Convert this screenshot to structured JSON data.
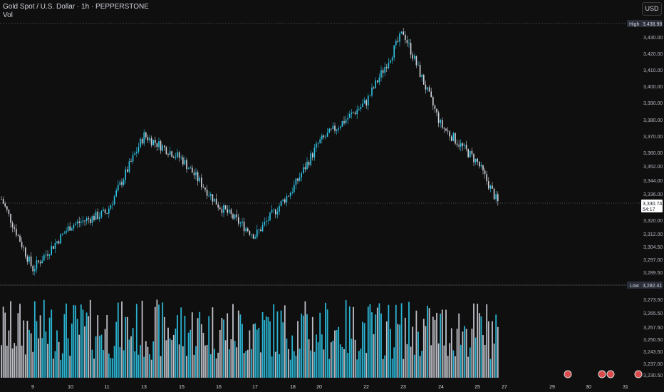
{
  "header": {
    "title": "Gold Spot / U.S. Dollar · 1h · PEPPERSTONE",
    "volume_label": "Vol",
    "currency": "USD"
  },
  "price_axis": {
    "ticks": [
      "3,430.00",
      "3,420.00",
      "3,410.00",
      "3,400.00",
      "3,390.00",
      "3,380.00",
      "3,370.00",
      "3,360.00",
      "3,352.00",
      "3,344.00",
      "3,336.00",
      "3,320.00",
      "3,312.00",
      "3,304.50",
      "3,297.00",
      "3,289.50"
    ],
    "vol_ticks": [
      "3,273.50",
      "3,265.50",
      "3,257.50",
      "3,250.50",
      "3,243.50",
      "3,237.00",
      "3,230.50"
    ],
    "high_label": "High",
    "high_value": "3,438.98",
    "low_label": "Low",
    "low_value": "3,282.41",
    "last_value": "3,330.74",
    "countdown": "54:17"
  },
  "time_axis": {
    "labels": [
      "9",
      "10",
      "11",
      "13",
      "15",
      "16",
      "17",
      "18",
      "20",
      "22",
      "23",
      "24",
      "25",
      "27",
      "29",
      "30",
      "31"
    ]
  },
  "colors": {
    "up": "#2ec6e8",
    "down": "#d1d4dc",
    "background": "#0f0f0f",
    "grid_line": "#6a6d78",
    "high_tag": "#2a2e39",
    "event_marker": "#d94a4a"
  },
  "chart_data": {
    "type": "candlestick",
    "title": "Gold Spot / U.S. Dollar · 1h · PEPPERSTONE",
    "symbol_currency": "USD",
    "timeframe": "1h",
    "ylim": [
      3282.41,
      3438.98
    ],
    "high": 3438.98,
    "low": 3282.41,
    "last": 3330.74,
    "close_path": [
      {
        "x": "9",
        "y": 3292
      },
      {
        "x": "10",
        "y": 3318
      },
      {
        "x": "11",
        "y": 3326
      },
      {
        "x": "13",
        "y": 3372
      },
      {
        "x": "15",
        "y": 3358
      },
      {
        "x": "16",
        "y": 3330
      },
      {
        "x": "17",
        "y": 3312
      },
      {
        "x": "18",
        "y": 3340
      },
      {
        "x": "20",
        "y": 3368
      },
      {
        "x": "22",
        "y": 3392
      },
      {
        "x": "23",
        "y": 3434
      },
      {
        "x": "24",
        "y": 3378
      },
      {
        "x": "25",
        "y": 3356
      },
      {
        "x": "27",
        "y": 3330.74
      }
    ],
    "volume_series": "Vol"
  }
}
